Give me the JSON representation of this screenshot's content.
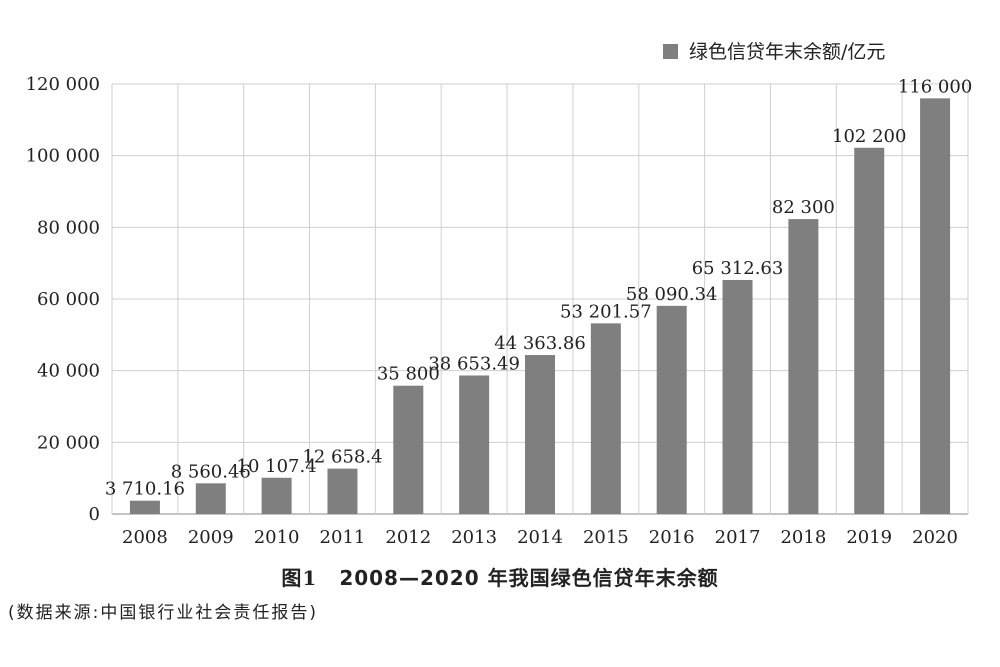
{
  "chart_data": {
    "type": "bar",
    "categories": [
      "2008",
      "2009",
      "2010",
      "2011",
      "2012",
      "2013",
      "2014",
      "2015",
      "2016",
      "2017",
      "2018",
      "2019",
      "2020"
    ],
    "series": [
      {
        "name": "绿色信贷年末余额/亿元",
        "values": [
          3710.16,
          8560.46,
          10107.4,
          12658.4,
          35800,
          38653.49,
          44363.86,
          53201.57,
          58090.34,
          65312.63,
          82300,
          102200,
          116000
        ],
        "labels": [
          "3 710.16",
          "8 560.46",
          "10 107.4",
          "12 658.4",
          "35 800",
          "38 653.49",
          "44 363.86",
          "53 201.57",
          "58 090.34",
          "65 312.63",
          "82 300",
          "102 200",
          "116 000"
        ],
        "color": "#7f7f7f"
      }
    ],
    "yticks": [
      0,
      20000,
      40000,
      60000,
      80000,
      100000,
      120000
    ],
    "ytick_labels": [
      "0",
      "20 000",
      "40 000",
      "60 000",
      "80 000",
      "100 000",
      "120 000"
    ],
    "ylim": [
      0,
      120000
    ],
    "grid": true,
    "legend": "top-right",
    "title": "",
    "xlabel": "",
    "ylabel": ""
  },
  "caption": {
    "number": "图1",
    "text": "2008—2020 年我国绿色信贷年末余额"
  },
  "source_note": "(数据来源:中国银行业社会责任报告)"
}
